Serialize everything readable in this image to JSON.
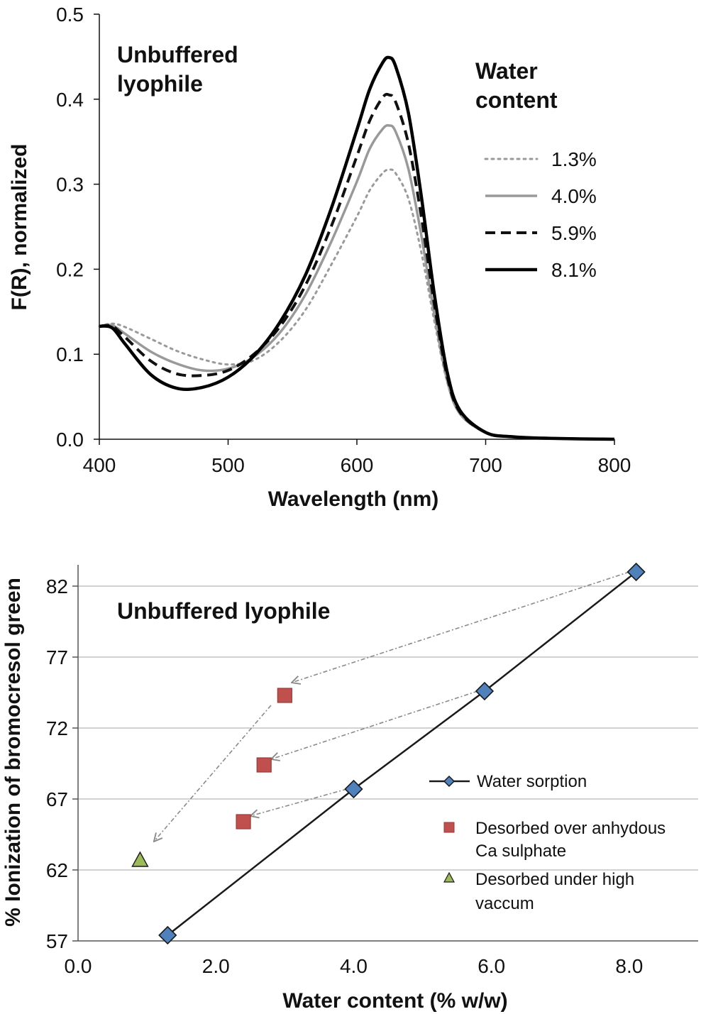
{
  "chart_data": [
    {
      "type": "line",
      "annotation": [
        "Unbuffered",
        "lyophile"
      ],
      "xlabel": "Wavelength (nm)",
      "ylabel": "F(R), normalized",
      "xlim": [
        400,
        800
      ],
      "ylim": [
        0,
        0.5
      ],
      "xticks": [
        "400",
        "500",
        "600",
        "700",
        "800"
      ],
      "yticks": [
        "0.0",
        "0.1",
        "0.2",
        "0.3",
        "0.4",
        "0.5"
      ],
      "legend_title": [
        "Water",
        "content"
      ],
      "legend_position": "top-right",
      "grid": false,
      "series": [
        {
          "name": "1.3%",
          "style": "dotted",
          "color": "#9a9a9a",
          "x": [
            400,
            410,
            420,
            440,
            460,
            480,
            500,
            520,
            540,
            560,
            580,
            600,
            610,
            620,
            625,
            630,
            640,
            650,
            660,
            670,
            680,
            700,
            720,
            750,
            800
          ],
          "y": [
            0.133,
            0.136,
            0.132,
            0.118,
            0.104,
            0.094,
            0.088,
            0.093,
            0.115,
            0.152,
            0.205,
            0.262,
            0.293,
            0.313,
            0.317,
            0.313,
            0.283,
            0.22,
            0.14,
            0.068,
            0.03,
            0.008,
            0.003,
            0.001,
            0.0
          ]
        },
        {
          "name": "4.0%",
          "style": "solid",
          "color": "#999999",
          "x": [
            400,
            410,
            420,
            440,
            460,
            480,
            500,
            520,
            540,
            560,
            580,
            600,
            610,
            620,
            625,
            630,
            640,
            650,
            660,
            670,
            680,
            700,
            720,
            750,
            800
          ],
          "y": [
            0.133,
            0.134,
            0.124,
            0.103,
            0.089,
            0.081,
            0.083,
            0.097,
            0.125,
            0.17,
            0.232,
            0.303,
            0.342,
            0.365,
            0.369,
            0.362,
            0.318,
            0.24,
            0.148,
            0.07,
            0.03,
            0.008,
            0.003,
            0.001,
            0.0
          ]
        },
        {
          "name": "5.9%",
          "style": "dashed",
          "color": "#111111",
          "x": [
            400,
            410,
            420,
            440,
            460,
            480,
            500,
            520,
            540,
            560,
            580,
            600,
            610,
            620,
            625,
            630,
            640,
            650,
            660,
            670,
            680,
            700,
            720,
            750,
            800
          ],
          "y": [
            0.133,
            0.133,
            0.12,
            0.092,
            0.077,
            0.075,
            0.081,
            0.1,
            0.132,
            0.181,
            0.25,
            0.333,
            0.375,
            0.402,
            0.405,
            0.397,
            0.348,
            0.262,
            0.16,
            0.075,
            0.032,
            0.008,
            0.003,
            0.001,
            0.0
          ]
        },
        {
          "name": "8.1%",
          "style": "solid-bold",
          "color": "#000000",
          "x": [
            400,
            410,
            420,
            440,
            460,
            480,
            500,
            520,
            540,
            560,
            580,
            600,
            610,
            620,
            625,
            630,
            640,
            650,
            660,
            670,
            680,
            700,
            720,
            750,
            800
          ],
          "y": [
            0.133,
            0.131,
            0.112,
            0.076,
            0.06,
            0.061,
            0.073,
            0.098,
            0.137,
            0.193,
            0.271,
            0.364,
            0.412,
            0.443,
            0.449,
            0.439,
            0.384,
            0.286,
            0.172,
            0.08,
            0.034,
            0.008,
            0.003,
            0.001,
            0.0
          ]
        }
      ]
    },
    {
      "type": "scatter",
      "annotation": "Unbuffered lyophile",
      "xlabel": "Water content (% w/w)",
      "ylabel": "% Ionization of bromocresol green",
      "xlim": [
        0,
        9
      ],
      "ylim": [
        57,
        83.5
      ],
      "xticks": [
        "0.0",
        "2.0",
        "4.0",
        "6.0",
        "8.0"
      ],
      "yticks": [
        "57",
        "62",
        "67",
        "72",
        "77",
        "82"
      ],
      "grid": true,
      "legend_position": "center-right",
      "series": [
        {
          "name": "Water sorption",
          "marker": "diamond",
          "color": "#4f81bd",
          "line": true,
          "x": [
            1.3,
            4.0,
            5.9,
            8.1
          ],
          "y": [
            57.4,
            67.7,
            74.6,
            83.0
          ]
        },
        {
          "name": [
            "Desorbed over anhydous",
            "Ca sulphate"
          ],
          "marker": "square",
          "color": "#c0504d",
          "line": false,
          "x": [
            2.4,
            2.7,
            3.0
          ],
          "y": [
            65.4,
            69.4,
            74.3
          ]
        },
        {
          "name": [
            "Desorbed under high",
            "vaccum"
          ],
          "marker": "triangle",
          "color": "#9bbb59",
          "line": false,
          "x": [
            0.9
          ],
          "y": [
            62.7
          ]
        }
      ],
      "arrows": [
        {
          "from": [
            8.0,
            83.0
          ],
          "to": [
            3.1,
            75.2
          ]
        },
        {
          "from": [
            5.8,
            74.6
          ],
          "to": [
            2.8,
            69.8
          ]
        },
        {
          "from": [
            3.9,
            67.7
          ],
          "to": [
            2.5,
            65.8
          ]
        },
        {
          "from": [
            2.8,
            73.6
          ],
          "to": [
            1.1,
            64.0
          ]
        }
      ]
    }
  ]
}
